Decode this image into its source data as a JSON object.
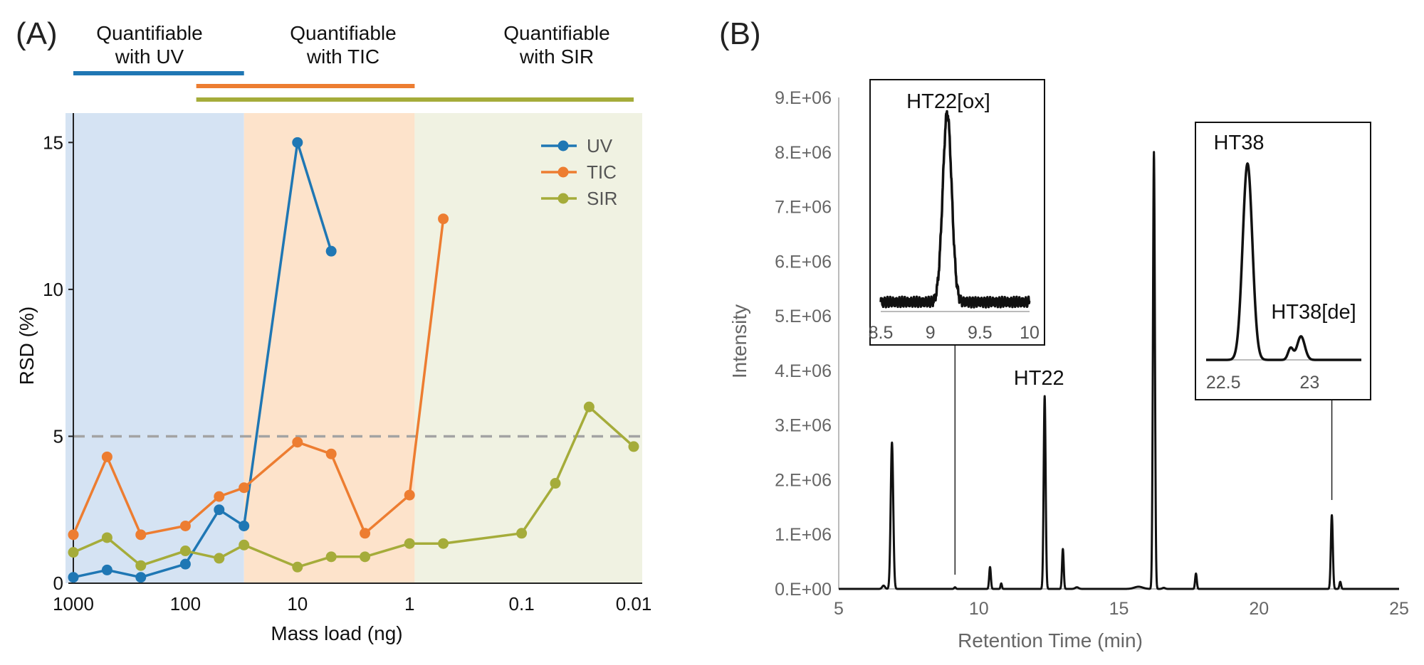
{
  "panel_a": {
    "label": "(A)",
    "zones": [
      {
        "line1": "Quantifiable",
        "line2": "with UV"
      },
      {
        "line1": "Quantifiable",
        "line2": "with TIC"
      },
      {
        "line1": "Quantifiable",
        "line2": "with SIR"
      }
    ],
    "zone_colors": [
      "#d5e3f3",
      "#fde3cb",
      "#f0f2e2"
    ],
    "range_bars": [
      {
        "series": "UV",
        "from": 1000,
        "to": 30
      },
      {
        "series": "TIC",
        "from": 80,
        "to": 0.9
      },
      {
        "series": "SIR",
        "from": 80,
        "to": 0.01
      }
    ]
  },
  "panel_b": {
    "label": "(B)"
  },
  "chart_data": [
    {
      "type": "line",
      "title": "",
      "xlabel": "Mass load (ng)",
      "ylabel": "RSD (%)",
      "xscale": "log-reversed",
      "xlim": [
        1000,
        0.01
      ],
      "ylim": [
        0,
        16
      ],
      "x_ticks": [
        "1000",
        "100",
        "10",
        "1",
        "0.1",
        "0.01"
      ],
      "x_tick_values": [
        1000,
        100,
        10,
        1,
        0.1,
        0.01
      ],
      "y_ticks": [
        "0",
        "5",
        "10",
        "15"
      ],
      "y_tick_values": [
        0,
        5,
        10,
        15
      ],
      "reference_line": {
        "y": 5,
        "style": "dashed"
      },
      "zones": [
        {
          "name": "UV",
          "from": 1000,
          "to": 30
        },
        {
          "name": "TIC",
          "from": 30,
          "to": 0.9
        },
        {
          "name": "SIR",
          "from": 0.9,
          "to": 0.01
        }
      ],
      "legend_position": "top-right",
      "series": [
        {
          "name": "UV",
          "color": "#1f77b4",
          "x": [
            1000,
            500,
            250,
            100,
            50,
            30,
            10,
            5
          ],
          "y": [
            0.2,
            0.45,
            0.2,
            0.65,
            2.5,
            1.95,
            15.0,
            11.3
          ]
        },
        {
          "name": "TIC",
          "color": "#ed7d31",
          "x": [
            1000,
            500,
            250,
            100,
            50,
            30,
            10,
            5,
            2.5,
            1,
            0.5
          ],
          "y": [
            1.65,
            4.3,
            1.65,
            1.95,
            2.95,
            3.25,
            4.8,
            4.4,
            1.7,
            3.0,
            12.4
          ]
        },
        {
          "name": "SIR",
          "color": "#a5ac3a",
          "x": [
            1000,
            500,
            250,
            100,
            50,
            30,
            10,
            5,
            2.5,
            1,
            0.5,
            0.1,
            0.05,
            0.025,
            0.01
          ],
          "y": [
            1.05,
            1.55,
            0.6,
            1.1,
            0.85,
            1.3,
            0.55,
            0.9,
            0.9,
            1.35,
            1.35,
            1.7,
            3.4,
            6.0,
            4.65
          ]
        }
      ]
    },
    {
      "type": "line",
      "title": "",
      "xlabel": "Retention Time (min)",
      "ylabel": "Intensity",
      "xlim": [
        5,
        25
      ],
      "ylim": [
        0,
        9000000
      ],
      "x_ticks": [
        "5",
        "10",
        "15",
        "20",
        "25"
      ],
      "x_tick_values": [
        5,
        10,
        15,
        20,
        25
      ],
      "y_ticks": [
        "0.E+00",
        "1.E+06",
        "2.E+06",
        "3.E+06",
        "4.E+06",
        "5.E+06",
        "6.E+06",
        "7.E+06",
        "8.E+06",
        "9.E+06"
      ],
      "y_tick_values": [
        0,
        1000000,
        2000000,
        3000000,
        4000000,
        5000000,
        6000000,
        7000000,
        8000000,
        9000000
      ],
      "peaks": [
        {
          "rt": 6.6,
          "height": 60000,
          "width": 0.05
        },
        {
          "rt": 6.9,
          "height": 2680000,
          "width": 0.045
        },
        {
          "rt": 9.15,
          "height": 30000,
          "width": 0.03
        },
        {
          "rt": 10.4,
          "height": 400000,
          "width": 0.03
        },
        {
          "rt": 10.8,
          "height": 100000,
          "width": 0.025
        },
        {
          "rt": 12.35,
          "height": 3530000,
          "width": 0.035
        },
        {
          "rt": 13.0,
          "height": 730000,
          "width": 0.03
        },
        {
          "rt": 13.5,
          "height": 30000,
          "width": 0.06
        },
        {
          "rt": 15.7,
          "height": 40000,
          "width": 0.15
        },
        {
          "rt": 16.25,
          "height": 8000000,
          "width": 0.035
        },
        {
          "rt": 16.6,
          "height": 20000,
          "width": 0.05
        },
        {
          "rt": 17.75,
          "height": 280000,
          "width": 0.03
        },
        {
          "rt": 22.6,
          "height": 1350000,
          "width": 0.035
        },
        {
          "rt": 22.9,
          "height": 130000,
          "width": 0.03
        }
      ],
      "annotations": [
        {
          "text": "HT22",
          "rt": 12.35
        }
      ],
      "insets": [
        {
          "name": "HT22[ox]",
          "title": "HT22[ox]",
          "pointer_rt": 9.15,
          "xlim": [
            8.5,
            10
          ],
          "x_ticks": [
            "8.5",
            "9",
            "9.5",
            "10"
          ],
          "x_tick_values": [
            8.5,
            9,
            9.5,
            10
          ],
          "baseline_level": 0.05,
          "peaks": [
            {
              "rt": 9.17,
              "height": 1.0,
              "width": 0.045
            }
          ],
          "noise": 0.02
        },
        {
          "name": "HT38",
          "title": "HT38",
          "sub_label": "HT38[de]",
          "pointer_rt": 22.6,
          "xlim": [
            22.4,
            23.3
          ],
          "x_ticks": [
            "22.5",
            "23"
          ],
          "x_tick_values": [
            22.5,
            23
          ],
          "baseline_level": 0.0,
          "peaks": [
            {
              "rt": 22.64,
              "height": 1.0,
              "width": 0.028
            },
            {
              "rt": 22.89,
              "height": 0.06,
              "width": 0.015
            },
            {
              "rt": 22.95,
              "height": 0.12,
              "width": 0.022
            }
          ],
          "noise": 0.0
        }
      ]
    }
  ]
}
